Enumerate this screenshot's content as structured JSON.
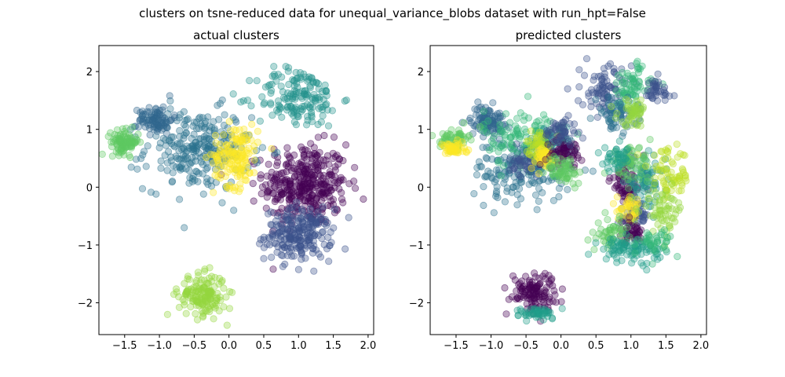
{
  "figure": {
    "suptitle": "clusters on tsne-reduced data for unequal_variance_blobs dataset with run_hpt=False"
  },
  "chart_data": [
    {
      "type": "scatter",
      "title": "actual clusters",
      "xlabel": "",
      "ylabel": "",
      "xlim": [
        -1.87,
        2.08
      ],
      "ylim": [
        -2.55,
        2.45
      ],
      "xticks": [
        -1.5,
        -1.0,
        -0.5,
        0.0,
        0.5,
        1.0,
        1.5,
        2.0
      ],
      "xtick_labels": [
        "−1.5",
        "−1.0",
        "−0.5",
        "0.0",
        "0.5",
        "1.0",
        "1.5",
        "2.0"
      ],
      "yticks": [
        -2,
        -1,
        0,
        1,
        2
      ],
      "ytick_labels": [
        "−2",
        "−1",
        "0",
        "1",
        "2"
      ],
      "grid": false,
      "point_alpha": 0.35,
      "clusters": [
        {
          "color": "#440154",
          "cx": 1.1,
          "cy": 0.05,
          "sx": 0.3,
          "sy": 0.35,
          "n": 360
        },
        {
          "color": "#3b528b",
          "cx": 1.0,
          "cy": -0.82,
          "sx": 0.24,
          "sy": 0.22,
          "n": 230
        },
        {
          "color": "#2c728e",
          "cx": -0.45,
          "cy": 0.65,
          "sx": 0.38,
          "sy": 0.35,
          "n": 260
        },
        {
          "color": "#31688e",
          "cx": -1.05,
          "cy": 1.17,
          "sx": 0.12,
          "sy": 0.12,
          "n": 90
        },
        {
          "color": "#21918c",
          "cx": 1.0,
          "cy": 1.55,
          "sx": 0.3,
          "sy": 0.26,
          "n": 160
        },
        {
          "color": "#fde725",
          "cx": 0.1,
          "cy": 0.55,
          "sx": 0.16,
          "sy": 0.27,
          "n": 150
        },
        {
          "color": "#5ec962",
          "cx": -1.5,
          "cy": 0.78,
          "sx": 0.1,
          "sy": 0.1,
          "n": 100
        },
        {
          "color": "#95d840",
          "cx": -0.38,
          "cy": -1.87,
          "sx": 0.17,
          "sy": 0.18,
          "n": 160
        }
      ]
    },
    {
      "type": "scatter",
      "title": "predicted clusters",
      "xlabel": "",
      "ylabel": "",
      "xlim": [
        -1.87,
        2.08
      ],
      "ylim": [
        -2.55,
        2.45
      ],
      "xticks": [
        -1.5,
        -1.0,
        -0.5,
        0.0,
        0.5,
        1.0,
        1.5,
        2.0
      ],
      "xtick_labels": [
        "−1.5",
        "−1.0",
        "−0.5",
        "0.0",
        "0.5",
        "1.0",
        "1.5",
        "2.0"
      ],
      "yticks": [
        -2,
        -1,
        0,
        1,
        2
      ],
      "ytick_labels": [
        "−2",
        "−1",
        "0",
        "1",
        "2"
      ],
      "grid": false,
      "point_alpha": 0.35,
      "clusters": [
        {
          "color": "#2c728e",
          "cx": -0.55,
          "cy": 0.3,
          "sx": 0.35,
          "sy": 0.28,
          "n": 170
        },
        {
          "color": "#31688e",
          "cx": -1.05,
          "cy": 1.15,
          "sx": 0.12,
          "sy": 0.13,
          "n": 100
        },
        {
          "color": "#35b779",
          "cx": -0.5,
          "cy": 0.85,
          "sx": 0.3,
          "sy": 0.25,
          "n": 120
        },
        {
          "color": "#3b528b",
          "cx": -0.5,
          "cy": 0.42,
          "sx": 0.12,
          "sy": 0.12,
          "n": 50
        },
        {
          "color": "#21918c",
          "cx": -0.15,
          "cy": 0.75,
          "sx": 0.15,
          "sy": 0.15,
          "n": 50
        },
        {
          "color": "#bddf26",
          "cx": -0.3,
          "cy": 0.75,
          "sx": 0.1,
          "sy": 0.12,
          "n": 50
        },
        {
          "color": "#fde725",
          "cx": -0.25,
          "cy": 0.5,
          "sx": 0.1,
          "sy": 0.1,
          "n": 50
        },
        {
          "color": "#440154",
          "cx": 0.05,
          "cy": 0.6,
          "sx": 0.13,
          "sy": 0.12,
          "n": 60
        },
        {
          "color": "#5ec962",
          "cx": 0.05,
          "cy": 0.3,
          "sx": 0.13,
          "sy": 0.12,
          "n": 60
        },
        {
          "color": "#3b528b",
          "cx": -0.0,
          "cy": 0.95,
          "sx": 0.12,
          "sy": 0.12,
          "n": 50
        },
        {
          "color": "#5ec962",
          "cx": -1.52,
          "cy": 0.85,
          "sx": 0.1,
          "sy": 0.09,
          "n": 60
        },
        {
          "color": "#fde725",
          "cx": -1.55,
          "cy": 0.65,
          "sx": 0.1,
          "sy": 0.06,
          "n": 50
        },
        {
          "color": "#3b528b",
          "cx": 0.65,
          "cy": 1.65,
          "sx": 0.18,
          "sy": 0.24,
          "n": 90
        },
        {
          "color": "#35b779",
          "cx": 1.0,
          "cy": 1.75,
          "sx": 0.15,
          "sy": 0.2,
          "n": 70
        },
        {
          "color": "#2c728e",
          "cx": 0.8,
          "cy": 1.25,
          "sx": 0.15,
          "sy": 0.15,
          "n": 60
        },
        {
          "color": "#95d840",
          "cx": 1.05,
          "cy": 1.3,
          "sx": 0.12,
          "sy": 0.12,
          "n": 50
        },
        {
          "color": "#3b528b",
          "cx": 1.35,
          "cy": 1.65,
          "sx": 0.12,
          "sy": 0.12,
          "n": 40
        },
        {
          "color": "#440154",
          "cx": 0.95,
          "cy": 0.1,
          "sx": 0.12,
          "sy": 0.2,
          "n": 70
        },
        {
          "color": "#21918c",
          "cx": 1.2,
          "cy": 0.1,
          "sx": 0.14,
          "sy": 0.2,
          "n": 80
        },
        {
          "color": "#5ec962",
          "cx": 1.0,
          "cy": 0.4,
          "sx": 0.15,
          "sy": 0.15,
          "n": 60
        },
        {
          "color": "#bddf26",
          "cx": 1.55,
          "cy": 0.2,
          "sx": 0.15,
          "sy": 0.22,
          "n": 70
        },
        {
          "color": "#1f9e89",
          "cx": 0.8,
          "cy": 0.5,
          "sx": 0.1,
          "sy": 0.1,
          "n": 40
        },
        {
          "color": "#3b528b",
          "cx": 1.05,
          "cy": -0.5,
          "sx": 0.1,
          "sy": 0.12,
          "n": 50
        },
        {
          "color": "#fde725",
          "cx": 1.0,
          "cy": -0.4,
          "sx": 0.1,
          "sy": 0.1,
          "n": 40
        },
        {
          "color": "#95d840",
          "cx": 1.45,
          "cy": -0.4,
          "sx": 0.15,
          "sy": 0.18,
          "n": 60
        },
        {
          "color": "#440154",
          "cx": 1.0,
          "cy": -0.8,
          "sx": 0.1,
          "sy": 0.1,
          "n": 40
        },
        {
          "color": "#5ec962",
          "cx": 0.72,
          "cy": -0.8,
          "sx": 0.1,
          "sy": 0.12,
          "n": 50
        },
        {
          "color": "#1f9e89",
          "cx": 1.0,
          "cy": -1.08,
          "sx": 0.22,
          "sy": 0.1,
          "n": 90
        },
        {
          "color": "#35b779",
          "cx": 1.35,
          "cy": -0.95,
          "sx": 0.12,
          "sy": 0.12,
          "n": 40
        },
        {
          "color": "#440154",
          "cx": -0.4,
          "cy": -1.8,
          "sx": 0.16,
          "sy": 0.16,
          "n": 120
        },
        {
          "color": "#1f9e89",
          "cx": -0.3,
          "cy": -2.18,
          "sx": 0.15,
          "sy": 0.05,
          "n": 50
        }
      ]
    }
  ]
}
